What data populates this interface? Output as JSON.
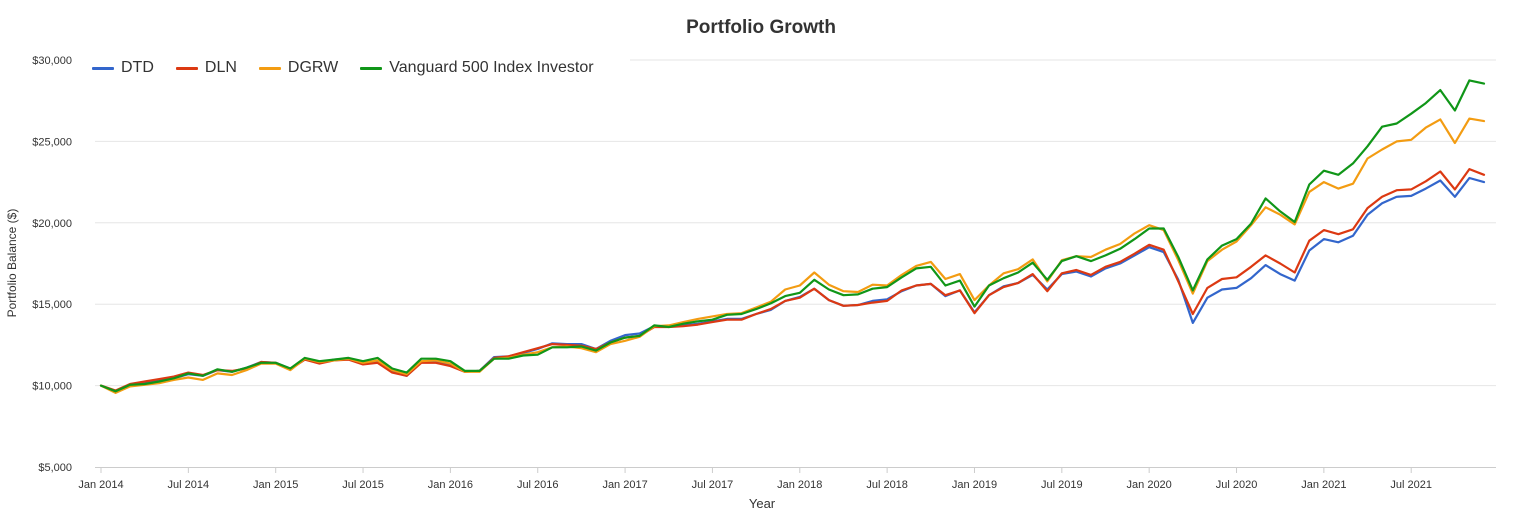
{
  "chart_data": {
    "type": "line",
    "title": "Portfolio Growth",
    "xlabel": "Year",
    "ylabel": "Portfolio Balance ($)",
    "ylim": [
      5000,
      30000
    ],
    "yticks": [
      {
        "value": 5000,
        "label": "$5,000"
      },
      {
        "value": 10000,
        "label": "$10,000"
      },
      {
        "value": 15000,
        "label": "$15,000"
      },
      {
        "value": 20000,
        "label": "$20,000"
      },
      {
        "value": 25000,
        "label": "$25,000"
      },
      {
        "value": 30000,
        "label": "$30,000"
      }
    ],
    "xticks": [
      {
        "index": 0,
        "label": "Jan 2014"
      },
      {
        "index": 6,
        "label": "Jul 2014"
      },
      {
        "index": 12,
        "label": "Jan 2015"
      },
      {
        "index": 18,
        "label": "Jul 2015"
      },
      {
        "index": 24,
        "label": "Jan 2016"
      },
      {
        "index": 30,
        "label": "Jul 2016"
      },
      {
        "index": 36,
        "label": "Jan 2017"
      },
      {
        "index": 42,
        "label": "Jul 2017"
      },
      {
        "index": 48,
        "label": "Jan 2018"
      },
      {
        "index": 54,
        "label": "Jul 2018"
      },
      {
        "index": 60,
        "label": "Jan 2019"
      },
      {
        "index": 66,
        "label": "Jul 2019"
      },
      {
        "index": 72,
        "label": "Jan 2020"
      },
      {
        "index": 78,
        "label": "Jul 2020"
      },
      {
        "index": 84,
        "label": "Jan 2021"
      },
      {
        "index": 90,
        "label": "Jul 2021"
      }
    ],
    "grid": true,
    "legend_position": "top-left",
    "series": [
      {
        "name": "DTD",
        "color": "#3366cc",
        "values": [
          10000,
          9650,
          10050,
          10150,
          10300,
          10450,
          10700,
          10600,
          10950,
          10850,
          11100,
          11450,
          11400,
          11050,
          11600,
          11400,
          11600,
          11650,
          11350,
          11450,
          10850,
          10600,
          11450,
          11450,
          11250,
          10850,
          10900,
          11750,
          11800,
          12000,
          12250,
          12600,
          12550,
          12550,
          12250,
          12750,
          13100,
          13200,
          13650,
          13650,
          13700,
          13800,
          13950,
          14100,
          14100,
          14400,
          14650,
          15200,
          15450,
          15950,
          15250,
          14900,
          14950,
          15200,
          15300,
          15800,
          16150,
          16250,
          15500,
          15850,
          14500,
          15550,
          16100,
          16300,
          16800,
          15900,
          16850,
          17000,
          16700,
          17200,
          17500,
          18000,
          18500,
          18200,
          16500,
          13850,
          15400,
          15900,
          16000,
          16600,
          17400,
          16850,
          16450,
          18300,
          19000,
          18800,
          19200,
          20500,
          21200,
          21600,
          21650,
          22100,
          22600,
          21600,
          22750,
          22500
        ]
      },
      {
        "name": "DLN",
        "color": "#dc3912",
        "values": [
          10000,
          9700,
          10100,
          10250,
          10400,
          10550,
          10800,
          10650,
          10950,
          10900,
          11050,
          11450,
          11400,
          11000,
          11600,
          11350,
          11550,
          11600,
          11300,
          11400,
          10800,
          10600,
          11400,
          11400,
          11200,
          10850,
          10900,
          11700,
          11800,
          12050,
          12300,
          12550,
          12500,
          12450,
          12250,
          12650,
          12950,
          13050,
          13600,
          13600,
          13650,
          13750,
          13900,
          14050,
          14050,
          14400,
          14700,
          15200,
          15400,
          15950,
          15250,
          14900,
          14950,
          15100,
          15200,
          15850,
          16150,
          16250,
          15550,
          15850,
          14450,
          15550,
          16050,
          16300,
          16850,
          15800,
          16900,
          17100,
          16800,
          17300,
          17600,
          18100,
          18650,
          18350,
          16400,
          14400,
          16000,
          16550,
          16650,
          17300,
          18000,
          17500,
          16950,
          18900,
          19550,
          19300,
          19600,
          20900,
          21600,
          22000,
          22050,
          22550,
          23150,
          22050,
          23300,
          22950
        ]
      },
      {
        "name": "DGRW",
        "color": "#f39c12",
        "values": [
          10000,
          9550,
          9950,
          10050,
          10150,
          10350,
          10500,
          10350,
          10750,
          10650,
          10950,
          11350,
          11350,
          10950,
          11650,
          11450,
          11550,
          11650,
          11400,
          11550,
          10950,
          10700,
          11500,
          11550,
          11350,
          10850,
          10850,
          11650,
          11700,
          11900,
          12050,
          12350,
          12400,
          12300,
          12050,
          12550,
          12750,
          13000,
          13650,
          13700,
          13900,
          14100,
          14250,
          14400,
          14450,
          14800,
          15150,
          15900,
          16150,
          16950,
          16200,
          15800,
          15750,
          16200,
          16150,
          16800,
          17350,
          17600,
          16550,
          16850,
          15250,
          16150,
          16900,
          17150,
          17750,
          16400,
          17700,
          17950,
          17900,
          18350,
          18700,
          19350,
          19850,
          19550,
          17700,
          15650,
          17650,
          18350,
          18850,
          19850,
          20950,
          20500,
          19900,
          21900,
          22500,
          22100,
          22400,
          23950,
          24500,
          25000,
          25100,
          25850,
          26350,
          24900,
          26400,
          26250
        ]
      },
      {
        "name": "Vanguard 500 Index Investor",
        "color": "#109618",
        "values": [
          10000,
          9650,
          10050,
          10100,
          10250,
          10450,
          10750,
          10600,
          11000,
          10850,
          11100,
          11400,
          11400,
          11050,
          11700,
          11500,
          11600,
          11700,
          11500,
          11700,
          11050,
          10800,
          11650,
          11650,
          11500,
          10900,
          10900,
          11650,
          11650,
          11850,
          11900,
          12350,
          12350,
          12400,
          12150,
          12650,
          12950,
          13050,
          13700,
          13600,
          13800,
          13950,
          14050,
          14350,
          14400,
          14700,
          15050,
          15500,
          15700,
          16500,
          15900,
          15550,
          15600,
          15950,
          16050,
          16650,
          17200,
          17300,
          16150,
          16450,
          14850,
          16150,
          16600,
          16950,
          17550,
          16500,
          17650,
          17950,
          17650,
          18000,
          18400,
          19000,
          19650,
          19650,
          17900,
          15850,
          17750,
          18600,
          19000,
          19950,
          21500,
          20700,
          20050,
          22350,
          23200,
          22950,
          23650,
          24700,
          25900,
          26100,
          26700,
          27350,
          28150,
          26900,
          28750,
          28550
        ]
      }
    ]
  }
}
